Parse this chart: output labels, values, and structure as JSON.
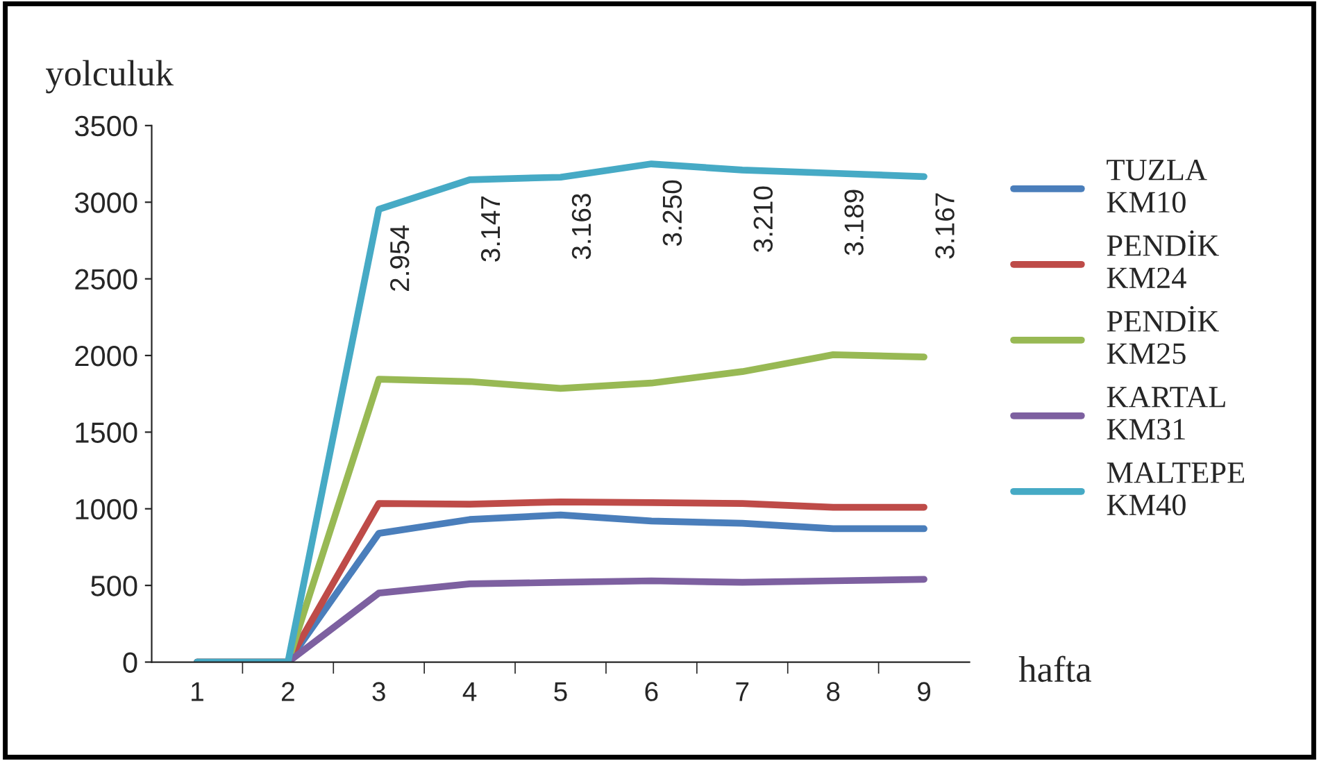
{
  "chart_data": {
    "type": "line",
    "ylabel": "yolculuk",
    "xlabel": "hafta",
    "categories": [
      "1",
      "2",
      "3",
      "4",
      "5",
      "6",
      "7",
      "8",
      "9"
    ],
    "ylim": [
      0,
      3500
    ],
    "yticks": [
      0,
      500,
      1000,
      1500,
      2000,
      2500,
      3000,
      3500
    ],
    "grid": false,
    "legend": "right",
    "marker": "none",
    "line_style": "solid",
    "series": [
      {
        "name": "TUZLA KM10",
        "color": "#4a7ebb",
        "values": [
          0,
          0,
          840,
          930,
          960,
          920,
          905,
          870,
          870
        ]
      },
      {
        "name": "PENDİK KM24",
        "color": "#be4b48",
        "values": [
          0,
          0,
          1035,
          1030,
          1045,
          1040,
          1035,
          1010,
          1010
        ]
      },
      {
        "name": "PENDİK KM25",
        "color": "#98b954",
        "values": [
          0,
          0,
          1845,
          1830,
          1785,
          1820,
          1895,
          2005,
          1990
        ]
      },
      {
        "name": "KARTAL KM31",
        "color": "#7d60a0",
        "values": [
          0,
          0,
          450,
          510,
          520,
          530,
          520,
          530,
          540
        ]
      },
      {
        "name": "MALTEPE KM40",
        "color": "#46aac5",
        "values": [
          0,
          0,
          2954,
          3147,
          3163,
          3250,
          3210,
          3189,
          3167
        ],
        "value_labels": [
          null,
          null,
          "2.954",
          "3.147",
          "3.163",
          "3.250",
          "3.210",
          "3.189",
          "3.167"
        ]
      }
    ]
  }
}
